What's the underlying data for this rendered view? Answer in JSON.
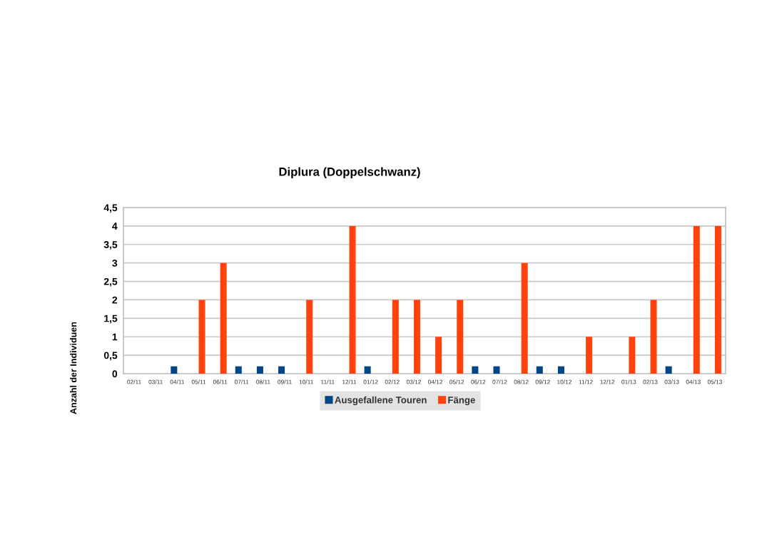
{
  "chart_data": {
    "type": "bar",
    "title": "Diplura (Doppelschwanz)",
    "ylabel": "Anzahl der Individuen",
    "categories": [
      "02/11",
      "03/11",
      "04/11",
      "05/11",
      "06/11",
      "07/11",
      "08/11",
      "09/11",
      "10/11",
      "11/11",
      "12/11",
      "01/12",
      "02/12",
      "03/12",
      "04/12",
      "05/12",
      "06/12",
      "07/12",
      "08/12",
      "09/12",
      "10/12",
      "11/12",
      "12/12",
      "01/13",
      "02/13",
      "03/13",
      "04/13",
      "05/13"
    ],
    "series": [
      {
        "name": "Ausgefallene Touren",
        "color": "#004586",
        "values": [
          null,
          null,
          0.2,
          null,
          null,
          0.2,
          0.2,
          0.2,
          null,
          null,
          null,
          0.2,
          null,
          null,
          null,
          null,
          0.2,
          0.2,
          null,
          0.2,
          0.2,
          null,
          null,
          null,
          null,
          0.2,
          null,
          null
        ]
      },
      {
        "name": "Fänge",
        "color": "#ff420e",
        "values": [
          null,
          null,
          null,
          2,
          3,
          null,
          null,
          null,
          2,
          null,
          4,
          null,
          2,
          2,
          1,
          2,
          null,
          null,
          3,
          null,
          null,
          1,
          null,
          1,
          2,
          null,
          4,
          4
        ]
      }
    ],
    "ylim": [
      0,
      4.5
    ],
    "yticks": [
      0,
      {
        "value": 0.5,
        "label": "0,5"
      },
      1,
      {
        "value": 1.5,
        "label": "1,5"
      },
      2,
      {
        "value": 2.5,
        "label": "2,5"
      },
      3,
      {
        "value": 3.5,
        "label": "3,5"
      },
      4,
      {
        "value": 4.5,
        "label": "4,5"
      }
    ],
    "grid": "y",
    "legend": "bottom"
  }
}
